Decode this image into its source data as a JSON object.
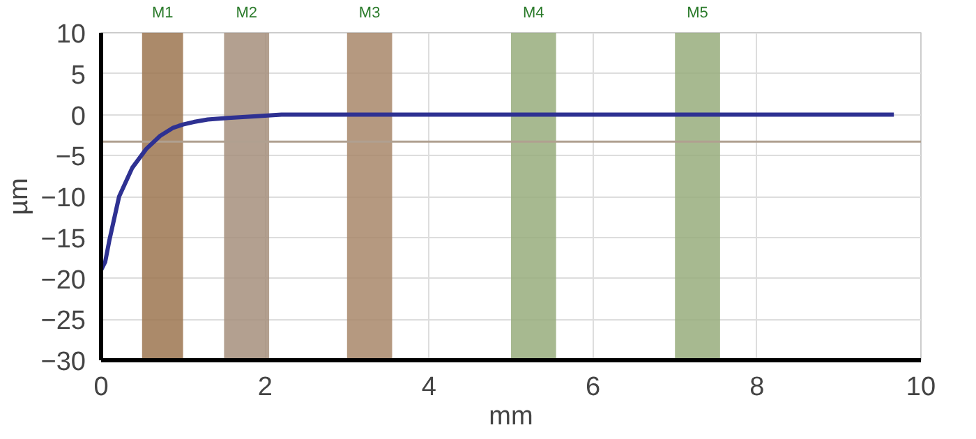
{
  "chart_data": {
    "type": "line",
    "xlabel": "mm",
    "ylabel": "µm",
    "x": [
      0,
      0.05,
      0.1,
      0.22,
      0.38,
      0.55,
      0.72,
      0.88,
      1.0,
      1.13,
      1.3,
      1.55,
      1.9,
      2.2,
      3,
      5,
      7,
      9.67
    ],
    "series": [
      {
        "color": "#2e3192",
        "values": [
          -19,
          -18,
          -15.4,
          -10,
          -6.5,
          -4.2,
          -2.6,
          -1.6,
          -1.2,
          -0.9,
          -0.6,
          -0.4,
          -0.2,
          0,
          0,
          0,
          0,
          0
        ]
      }
    ],
    "xlim": [
      0,
      10
    ],
    "ylim": [
      -30,
      10
    ],
    "xticks": [
      0,
      2,
      4,
      6,
      8,
      10
    ],
    "yticks": [
      -30,
      -25,
      -20,
      -15,
      -10,
      -5,
      0,
      5,
      10
    ],
    "grid": true,
    "marker": "none",
    "line_style": "solid",
    "ref_lines": [
      {
        "axis": "y",
        "value": -3.3,
        "color": "#b0a090"
      }
    ],
    "bands": [
      {
        "axis": "x",
        "from": 0.5,
        "to": 1.0,
        "label": "M1",
        "color": "#9c7550"
      },
      {
        "axis": "x",
        "from": 1.5,
        "to": 2.05,
        "label": "M2",
        "color": "#a68f7c"
      },
      {
        "axis": "x",
        "from": 3.0,
        "to": 3.55,
        "label": "M3",
        "color": "#a8876a"
      },
      {
        "axis": "x",
        "from": 5.0,
        "to": 5.55,
        "label": "M4",
        "color": "#98ad7c"
      },
      {
        "axis": "x",
        "from": 7.0,
        "to": 7.55,
        "label": "M5",
        "color": "#98ad7c"
      }
    ]
  }
}
